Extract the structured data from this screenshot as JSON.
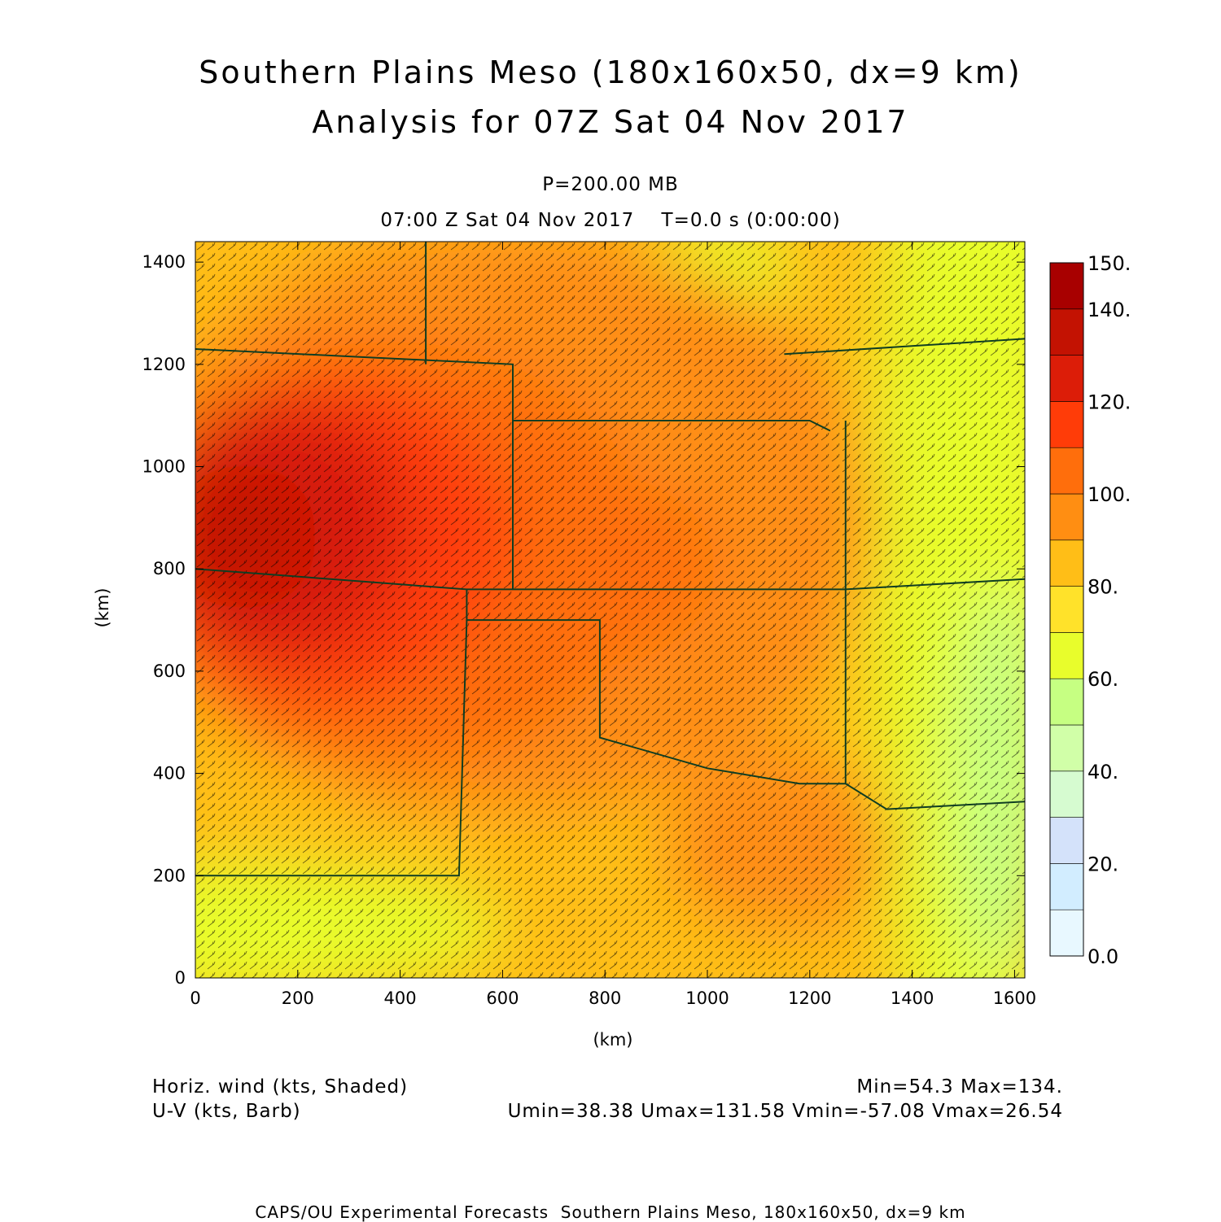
{
  "title": {
    "line1": "Southern Plains Meso (180x160x50, dx=9 km)",
    "line2": "Analysis for 07Z Sat 04 Nov 2017"
  },
  "level": "P=200.00 MB",
  "valid_time": "07:00 Z Sat 04 Nov 2017    T=0.0 s (0:00:00)",
  "footer": {
    "field1": "Horiz. wind (kts, Shaded)",
    "field2": "U-V (kts, Barb)",
    "stats1": "Min=54.3 Max=134.",
    "stats2": "Umin=38.38 Umax=131.58 Vmin=-57.08 Vmax=26.54",
    "credits": "CAPS/OU Experimental Forecasts  Southern Plains Meso, 180x160x50, dx=9 km"
  },
  "chart_data": {
    "type": "heatmap",
    "xlabel": "(km)",
    "ylabel": "(km)",
    "xlim": [
      0,
      1620
    ],
    "ylim": [
      0,
      1440
    ],
    "x_ticks": [
      0,
      200,
      400,
      600,
      800,
      1000,
      1200,
      1400,
      1600
    ],
    "y_ticks": [
      0,
      200,
      400,
      600,
      800,
      1000,
      1200,
      1400
    ],
    "field": "horizontal wind speed (kts)",
    "min": 54.3,
    "max": 134,
    "colorbar": {
      "labels": [
        "0.0",
        "20.",
        "40.",
        "60.",
        "80.",
        "100.",
        "120.",
        "140.",
        "150."
      ],
      "bins": [
        {
          "from": 0,
          "to": 10,
          "color": "#e8f8ff"
        },
        {
          "from": 10,
          "to": 20,
          "color": "#d2edff"
        },
        {
          "from": 20,
          "to": 30,
          "color": "#d4e2fa"
        },
        {
          "from": 30,
          "to": 40,
          "color": "#d6fbd0"
        },
        {
          "from": 40,
          "to": 50,
          "color": "#d1ffa8"
        },
        {
          "from": 50,
          "to": 60,
          "color": "#c6ff82"
        },
        {
          "from": 60,
          "to": 70,
          "color": "#e8fd2c"
        },
        {
          "from": 70,
          "to": 80,
          "color": "#ffe22a"
        },
        {
          "from": 80,
          "to": 90,
          "color": "#ffbe17"
        },
        {
          "from": 90,
          "to": 100,
          "color": "#ff8e12"
        },
        {
          "from": 100,
          "to": 110,
          "color": "#ff6e0c"
        },
        {
          "from": 110,
          "to": 120,
          "color": "#ff3c08"
        },
        {
          "from": 120,
          "to": 130,
          "color": "#dc1d08"
        },
        {
          "from": 130,
          "to": 140,
          "color": "#c31202"
        },
        {
          "from": 140,
          "to": 150,
          "color": "#a80000"
        }
      ]
    },
    "wind_maxima": [
      {
        "x": 130,
        "y": 880,
        "speed": 134
      },
      {
        "x": 420,
        "y": 900,
        "speed": 124
      },
      {
        "x": 800,
        "y": 720,
        "speed": 108
      },
      {
        "x": 1100,
        "y": 300,
        "speed": 92
      }
    ],
    "wind_minimum": {
      "x": 1580,
      "y": 130,
      "speed": 54.3
    },
    "state_boundaries_km": [
      [
        [
          0,
          1230
        ],
        [
          620,
          1200
        ],
        [
          620,
          1090
        ],
        [
          1200,
          1090
        ],
        [
          1240,
          1070
        ]
      ],
      [
        [
          0,
          800
        ],
        [
          530,
          760
        ],
        [
          530,
          700
        ],
        [
          790,
          700
        ],
        [
          790,
          470
        ],
        [
          1000,
          410
        ],
        [
          1180,
          380
        ],
        [
          1270,
          380
        ]
      ],
      [
        [
          620,
          1090
        ],
        [
          620,
          760
        ]
      ],
      [
        [
          530,
          760
        ],
        [
          1270,
          760
        ]
      ],
      [
        [
          1270,
          1090
        ],
        [
          1270,
          380
        ],
        [
          1350,
          330
        ],
        [
          1620,
          345
        ]
      ],
      [
        [
          530,
          700
        ],
        [
          515,
          200
        ],
        [
          0,
          200
        ]
      ],
      [
        [
          1270,
          760
        ],
        [
          1620,
          780
        ]
      ],
      [
        [
          450,
          1440
        ],
        [
          450,
          1200
        ]
      ],
      [
        [
          1150,
          1220
        ],
        [
          1620,
          1250
        ]
      ]
    ]
  }
}
